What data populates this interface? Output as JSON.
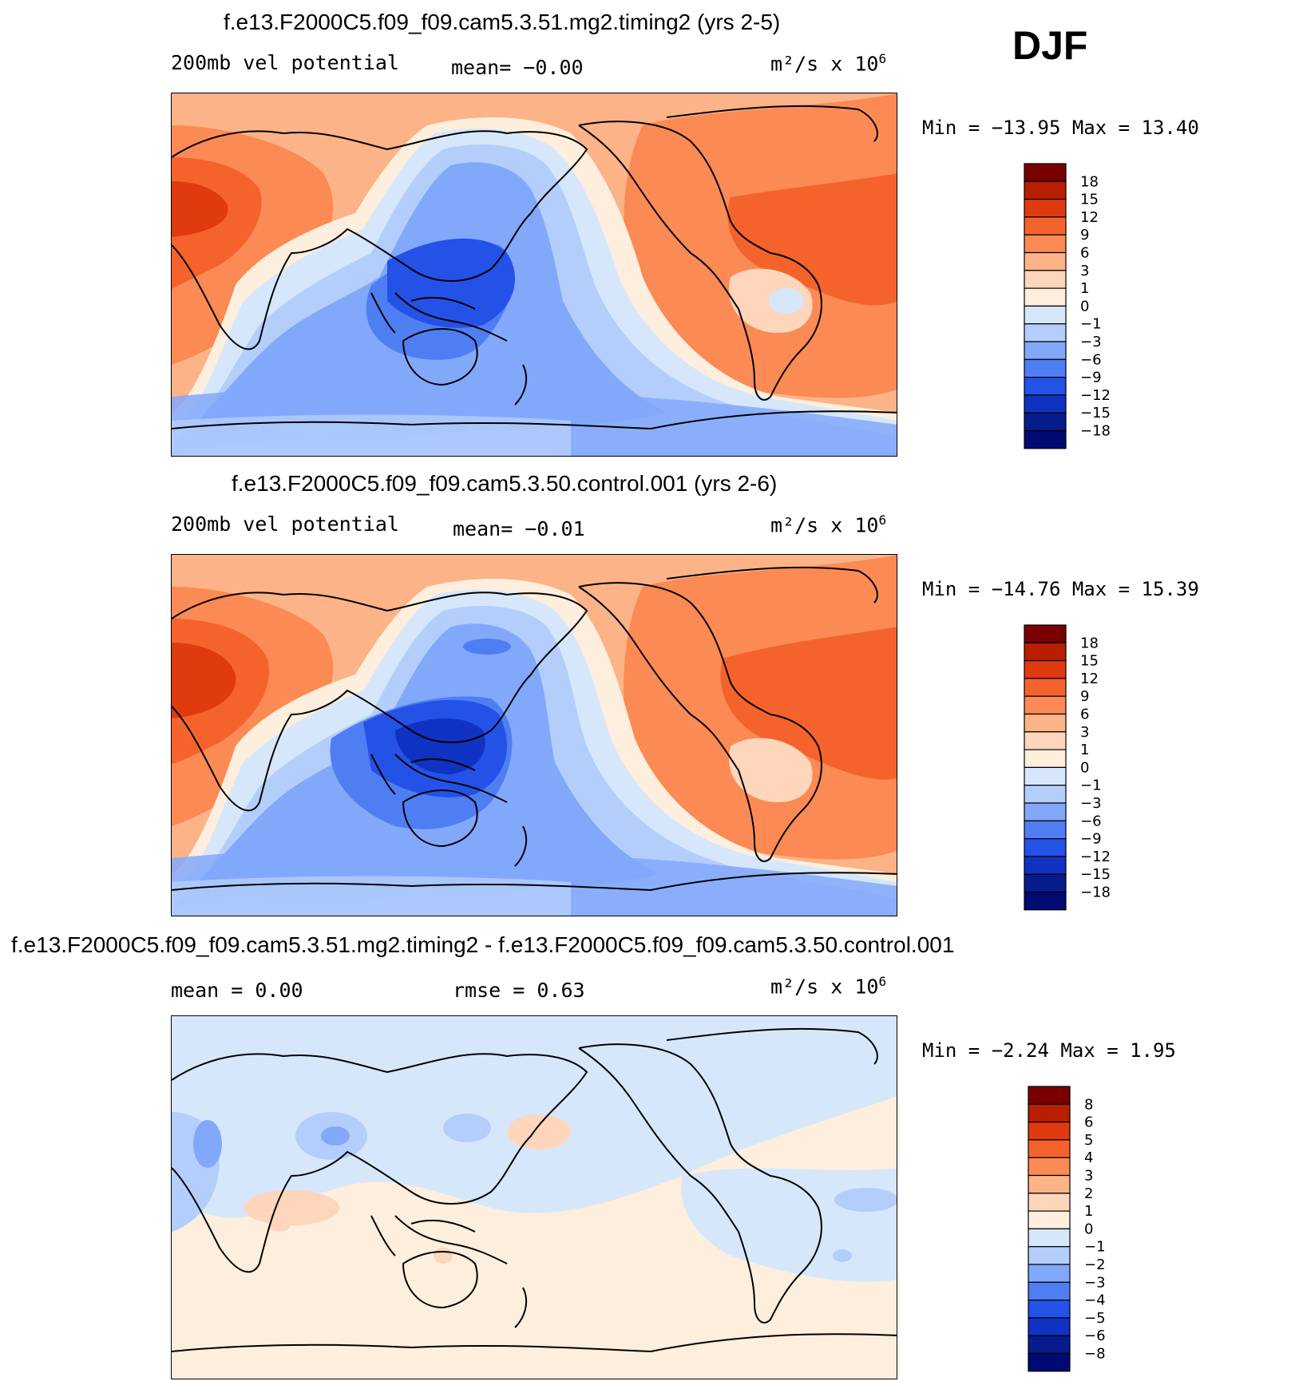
{
  "season": "DJF",
  "panels": [
    {
      "id": "test",
      "title": "f.e13.F2000C5.f09_f09.cam5.3.51.mg2.timing2 (yrs 2-5)",
      "variable": "200mb vel potential",
      "stat1": "mean=   −0.00",
      "units_base": "m²/s x 10",
      "units_exp": "6",
      "minmax": "Min = −13.95 Max =   13.40",
      "colorbar_levels": [
        "18",
        "15",
        "12",
        "9",
        "6",
        "3",
        "1",
        "0",
        "−1",
        "−3",
        "−6",
        "−9",
        "−12",
        "−15",
        "−18"
      ]
    },
    {
      "id": "control",
      "title": "f.e13.F2000C5.f09_f09.cam5.3.50.control.001 (yrs 2-6)",
      "variable": "200mb vel potential",
      "stat1": "mean=   −0.01",
      "units_base": "m²/s x 10",
      "units_exp": "6",
      "minmax": "Min = −14.76 Max =   15.39",
      "colorbar_levels": [
        "18",
        "15",
        "12",
        "9",
        "6",
        "3",
        "1",
        "0",
        "−1",
        "−3",
        "−6",
        "−9",
        "−12",
        "−15",
        "−18"
      ]
    },
    {
      "id": "difference",
      "title": "f.e13.F2000C5.f09_f09.cam5.3.51.mg2.timing2 - f.e13.F2000C5.f09_f09.cam5.3.50.control.001",
      "stat_mean": "mean =    0.00",
      "stat_rmse": "rmse =    0.63",
      "units_base": "m²/s x 10",
      "units_exp": "6",
      "minmax": "Min =  −2.24 Max =    1.95",
      "colorbar_levels": [
        "8",
        "6",
        "5",
        "4",
        "3",
        "2",
        "1",
        "0",
        "−1",
        "−2",
        "−3",
        "−4",
        "−5",
        "−6",
        "−8"
      ]
    }
  ],
  "colorbar_colors": [
    "#7a0000",
    "#b81e00",
    "#e03a0f",
    "#f5632c",
    "#fb8a55",
    "#fcb387",
    "#fdd6bb",
    "#fdeedd",
    "#d6e7fb",
    "#b4cefc",
    "#82a8fa",
    "#4f7ef3",
    "#2452e6",
    "#0f32c2",
    "#061c8c",
    "#000a73"
  ]
}
